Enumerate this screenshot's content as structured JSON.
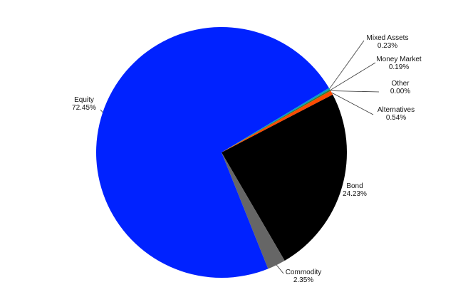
{
  "chart_data": {
    "type": "pie",
    "slices": [
      {
        "label": "Bond",
        "value": 24.23,
        "percent_text": "24.23%",
        "color": "#000000"
      },
      {
        "label": "Commodity",
        "value": 2.35,
        "percent_text": "2.35%",
        "color": "#666666"
      },
      {
        "label": "Equity",
        "value": 72.45,
        "percent_text": "72.45%",
        "color": "#0022FF"
      },
      {
        "label": "Mixed Assets",
        "value": 0.23,
        "percent_text": "0.23%",
        "color": "#00A0C8"
      },
      {
        "label": "Money Market",
        "value": 0.19,
        "percent_text": "0.19%",
        "color": "#3C7A2E"
      },
      {
        "label": "Other",
        "value": 0.0,
        "percent_text": "0.00%",
        "color": "#9A9A9A"
      },
      {
        "label": "Alternatives",
        "value": 0.54,
        "percent_text": "0.54%",
        "color": "#FF4A00"
      }
    ]
  }
}
